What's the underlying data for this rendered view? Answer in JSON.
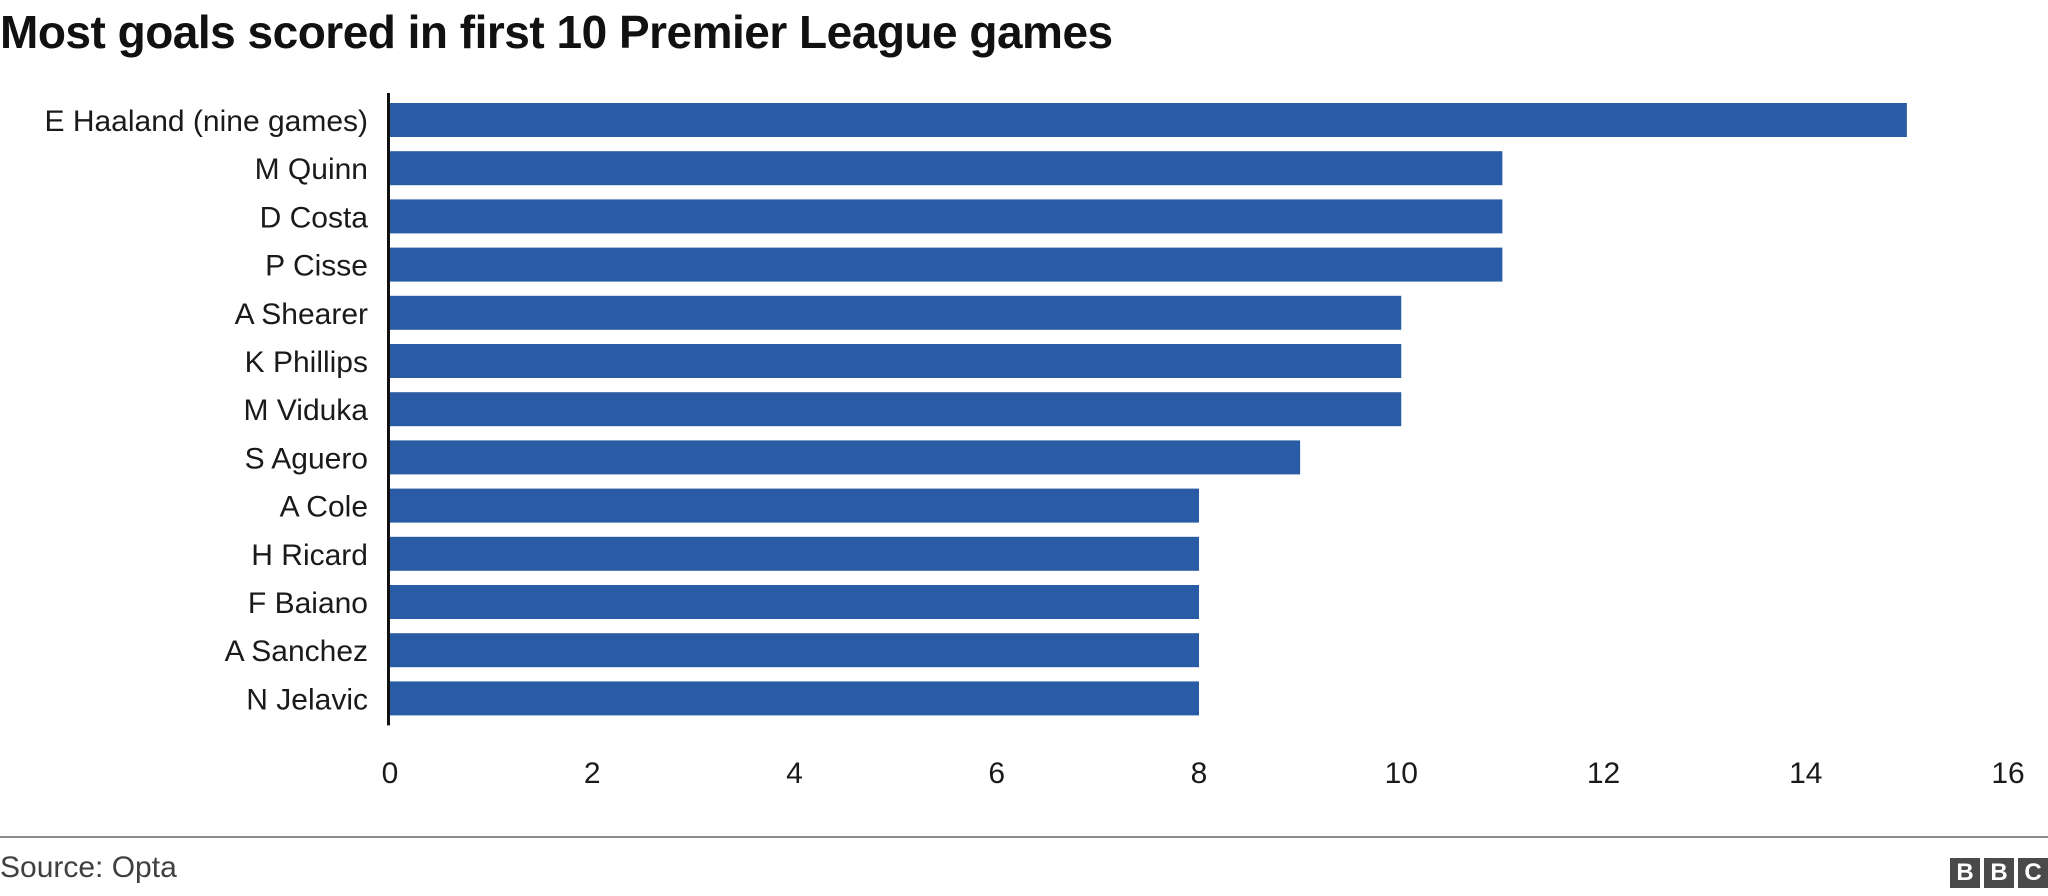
{
  "chart_data": {
    "type": "bar",
    "orientation": "horizontal",
    "title": "Most goals scored in first 10 Premier League games",
    "xlabel": "",
    "ylabel": "",
    "categories": [
      "E Haaland (nine games)",
      "M Quinn",
      "D Costa",
      "P Cisse",
      "A Shearer",
      "K Phillips",
      "M Viduka",
      "S Aguero",
      "A Cole",
      "H Ricard",
      "F Baiano",
      "A Sanchez",
      "N Jelavic"
    ],
    "values": [
      15,
      11,
      11,
      11,
      10,
      10,
      10,
      9,
      8,
      8,
      8,
      8,
      8
    ],
    "xlim": [
      0,
      16
    ],
    "xticks": [
      0,
      2,
      4,
      6,
      8,
      10,
      12,
      14,
      16
    ],
    "grid": false,
    "bar_color": "#2a5ca5"
  },
  "footer": {
    "source": "Source: Opta",
    "logo_letters": [
      "B",
      "B",
      "C"
    ]
  }
}
